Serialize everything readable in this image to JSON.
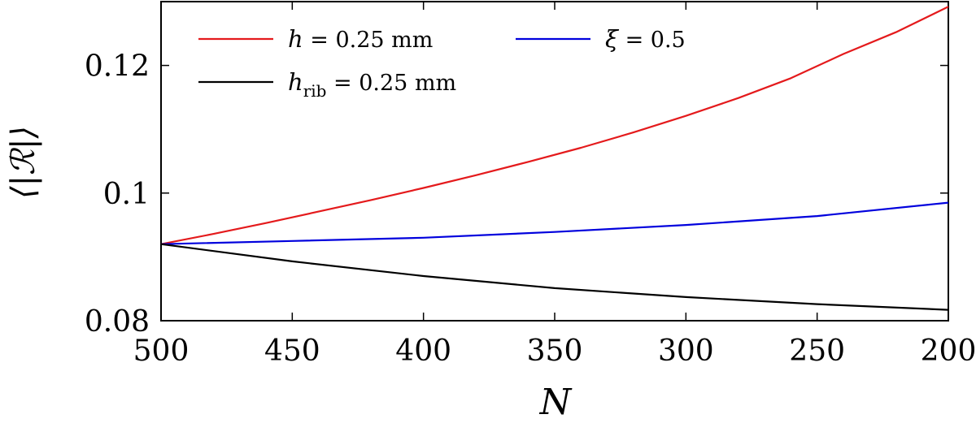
{
  "chart_data": {
    "type": "line",
    "xlabel": "N",
    "ylabel": "⟨|ℛ|⟩",
    "xlim": [
      500,
      200
    ],
    "ylim": [
      0.08,
      0.13
    ],
    "x_reversed": true,
    "xticks": [
      500,
      450,
      400,
      350,
      300,
      250,
      200
    ],
    "yticks": [
      0.08,
      0.1,
      0.12
    ],
    "ytick_labels": [
      "0.08",
      "0.1",
      "0.12"
    ],
    "grid": false,
    "legend_position": "top",
    "series": [
      {
        "name": "h = 0.25 mm",
        "color": "#e41a1c",
        "x": [
          500,
          480,
          460,
          440,
          420,
          400,
          380,
          360,
          340,
          320,
          300,
          280,
          260,
          240,
          220,
          200
        ],
        "y": [
          0.092,
          0.0936,
          0.0953,
          0.0971,
          0.0989,
          0.1008,
          0.1028,
          0.1049,
          0.1071,
          0.1095,
          0.1121,
          0.1149,
          0.118,
          0.1218,
          0.1252,
          0.1292
        ]
      },
      {
        "name": "ξ = 0.5",
        "color": "#0000dd",
        "x": [
          500,
          450,
          400,
          350,
          300,
          250,
          200
        ],
        "y": [
          0.092,
          0.0925,
          0.093,
          0.0939,
          0.095,
          0.0964,
          0.0985
        ]
      },
      {
        "name": "h_rib = 0.25 mm",
        "color": "#000000",
        "x": [
          500,
          450,
          400,
          350,
          300,
          250,
          200
        ],
        "y": [
          0.092,
          0.0893,
          0.087,
          0.0851,
          0.0837,
          0.0826,
          0.0817
        ]
      }
    ],
    "legend": {
      "entries": [
        {
          "math": "h",
          "sub": "",
          "rest": " = 0.25 mm"
        },
        {
          "math": "ξ",
          "sub": "",
          "rest": " = 0.5"
        },
        {
          "math": "h",
          "sub": "rib",
          "rest": " = 0.25 mm"
        }
      ]
    }
  }
}
